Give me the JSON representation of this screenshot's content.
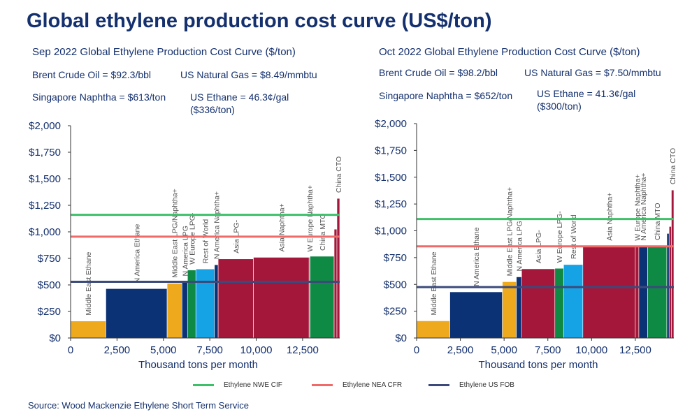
{
  "title": "Global ethylene production cost curve (US$/ton)",
  "source": "Source: Wood Mackenzie Ethylene Short Term Service",
  "legend": [
    {
      "label": "Ethylene NWE CIF",
      "color": "#3ec06a"
    },
    {
      "label": "Ethylene NEA CFR",
      "color": "#f06a6a"
    },
    {
      "label": "Ethylene US FOB",
      "color": "#3b4a7a"
    }
  ],
  "panels": [
    {
      "title": "Sep 2022 Global Ethylene Production Cost Curve ($/ton)",
      "brent": "Brent Crude Oil = $92.3/bbl",
      "gas": "US Natural Gas = $8.49/mmbtu",
      "naphtha": "Singapore Naphtha = $613/ton",
      "ethane_line1": "US Ethane = 46.3¢/gal",
      "ethane_line2": "($336/ton)"
    },
    {
      "title": "Oct 2022 Global Ethylene Production Cost Curve ($/ton)",
      "brent": "Brent Crude Oil = $98.2/bbl",
      "gas": "US Natural Gas = $7.50/mmbtu",
      "naphtha": "Singapore Naphtha = $652/ton",
      "ethane_line1": "US Ethane = 41.3¢/gal",
      "ethane_line2": "($300/ton)"
    }
  ],
  "chart_data": [
    {
      "type": "bar",
      "title": "Sep 2022 Global Ethylene Production Cost Curve ($/ton)",
      "xlabel": "Thousand tons per month",
      "ylabel": "",
      "xlim": [
        0,
        14500
      ],
      "ylim": [
        0,
        2000
      ],
      "xticks": [
        "0",
        "2,500",
        "5,000",
        "7,500",
        "10,000",
        "12,500"
      ],
      "xtick_values": [
        0,
        2500,
        5000,
        7500,
        10000,
        12500
      ],
      "yticks": [
        "$0",
        "$250",
        "$500",
        "$750",
        "$1,000",
        "$1,250",
        "$1,500",
        "$1,750",
        "$2,000"
      ],
      "ytick_values": [
        0,
        250,
        500,
        750,
        1000,
        1250,
        1500,
        1750,
        2000
      ],
      "bars": [
        {
          "label": "Middle East Ethane",
          "x0": 0,
          "x1": 1900,
          "value": 160,
          "color": "#eeaa1c"
        },
        {
          "label": "N America Ethane",
          "x0": 1900,
          "x1": 5200,
          "value": 465,
          "color": "#0c3276"
        },
        {
          "label": "Middle East LPG/Naphtha+",
          "x0": 5200,
          "x1": 6000,
          "value": 515,
          "color": "#eeaa1c"
        },
        {
          "label": "N America LPG",
          "x0": 6000,
          "x1": 6300,
          "value": 530,
          "color": "#0c3276"
        },
        {
          "label": "W Europe LPG-",
          "x0": 6300,
          "x1": 6750,
          "value": 640,
          "color": "#0f8a45"
        },
        {
          "label": "Rest of World",
          "x0": 6750,
          "x1": 7750,
          "value": 650,
          "color": "#16a3e6"
        },
        {
          "label": "N America Naphtha+",
          "x0": 7750,
          "x1": 7950,
          "value": 690,
          "color": "#0c3276"
        },
        {
          "label": "Asia LPG-",
          "x0": 7950,
          "x1": 9850,
          "value": 745,
          "color": "#a5173a"
        },
        {
          "label": "Asia Naphtha+",
          "x0": 9850,
          "x1": 12850,
          "value": 760,
          "color": "#a5173a"
        },
        {
          "label": "W Europe Naphtha+",
          "x0": 12850,
          "x1": 12900,
          "value": 760,
          "color": "#0f8a45"
        },
        {
          "label": "China MTO",
          "x0": 12900,
          "x1": 14200,
          "value": 770,
          "color": "#0f8a45"
        },
        {
          "label": "",
          "x0": 14200,
          "x1": 14350,
          "value": 1025,
          "color": "#a5173a"
        },
        {
          "label": "China CTO",
          "x0": 14350,
          "x1": 14500,
          "value": 1315,
          "color": "#a5173a"
        }
      ],
      "reference_lines": [
        {
          "name": "Ethylene NWE CIF",
          "value": 1160,
          "color": "#3ec06a"
        },
        {
          "name": "Ethylene NEA CFR",
          "value": 955,
          "color": "#f06a6a"
        },
        {
          "name": "Ethylene US FOB",
          "value": 530,
          "color": "#3b4a7a"
        }
      ],
      "legend_position": "bottom"
    },
    {
      "type": "bar",
      "title": "Oct 2022 Global Ethylene Production Cost Curve ($/ton)",
      "xlabel": "Thousand tons per month",
      "ylabel": "",
      "xlim": [
        0,
        14700
      ],
      "ylim": [
        0,
        2000
      ],
      "xticks": [
        "0",
        "2,500",
        "5,000",
        "7,500",
        "10,000",
        "12,500"
      ],
      "xtick_values": [
        0,
        2500,
        5000,
        7500,
        10000,
        12500
      ],
      "yticks": [
        "$0",
        "$250",
        "$500",
        "$750",
        "$1,000",
        "$1,250",
        "$1,500",
        "$1,750",
        "$2,000"
      ],
      "ytick_values": [
        0,
        250,
        500,
        750,
        1000,
        1250,
        1500,
        1750,
        2000
      ],
      "bars": [
        {
          "label": "Middle East Ethane",
          "x0": 0,
          "x1": 1900,
          "value": 160,
          "color": "#eeaa1c"
        },
        {
          "label": "N America Ethane",
          "x0": 1900,
          "x1": 4900,
          "value": 430,
          "color": "#0c3276"
        },
        {
          "label": "Middle East LPG/Naphtha+",
          "x0": 4900,
          "x1": 5700,
          "value": 525,
          "color": "#eeaa1c"
        },
        {
          "label": "N America LPG",
          "x0": 5700,
          "x1": 6000,
          "value": 570,
          "color": "#0c3276"
        },
        {
          "label": "Asia LPG-",
          "x0": 6000,
          "x1": 7900,
          "value": 645,
          "color": "#a5173a"
        },
        {
          "label": "W Europe LPG-",
          "x0": 7900,
          "x1": 8400,
          "value": 650,
          "color": "#0f8a45"
        },
        {
          "label": "Rest of World",
          "x0": 8400,
          "x1": 9500,
          "value": 685,
          "color": "#16a3e6"
        },
        {
          "label": "Asia Naphtha+",
          "x0": 9500,
          "x1": 12500,
          "value": 855,
          "color": "#a5173a"
        },
        {
          "label": "W Europe Naphtha+",
          "x0": 12500,
          "x1": 12700,
          "value": 855,
          "color": "#a5173a"
        },
        {
          "label": "N America Naphtha+",
          "x0": 12700,
          "x1": 13200,
          "value": 855,
          "color": "#0c3276"
        },
        {
          "label": "China MTO",
          "x0": 13200,
          "x1": 14300,
          "value": 860,
          "color": "#0f8a45"
        },
        {
          "label": "",
          "x0": 14300,
          "x1": 14430,
          "value": 975,
          "color": "#0c3276"
        },
        {
          "label": "",
          "x0": 14430,
          "x1": 14560,
          "value": 1040,
          "color": "#a5173a"
        },
        {
          "label": "China CTO",
          "x0": 14560,
          "x1": 14700,
          "value": 1380,
          "color": "#a5173a"
        }
      ],
      "reference_lines": [
        {
          "name": "Ethylene NWE CIF",
          "value": 1110,
          "color": "#3ec06a"
        },
        {
          "name": "Ethylene NEA CFR",
          "value": 855,
          "color": "#f06a6a"
        },
        {
          "name": "Ethylene US FOB",
          "value": 475,
          "color": "#3b4a7a"
        }
      ],
      "legend_position": "bottom"
    }
  ]
}
